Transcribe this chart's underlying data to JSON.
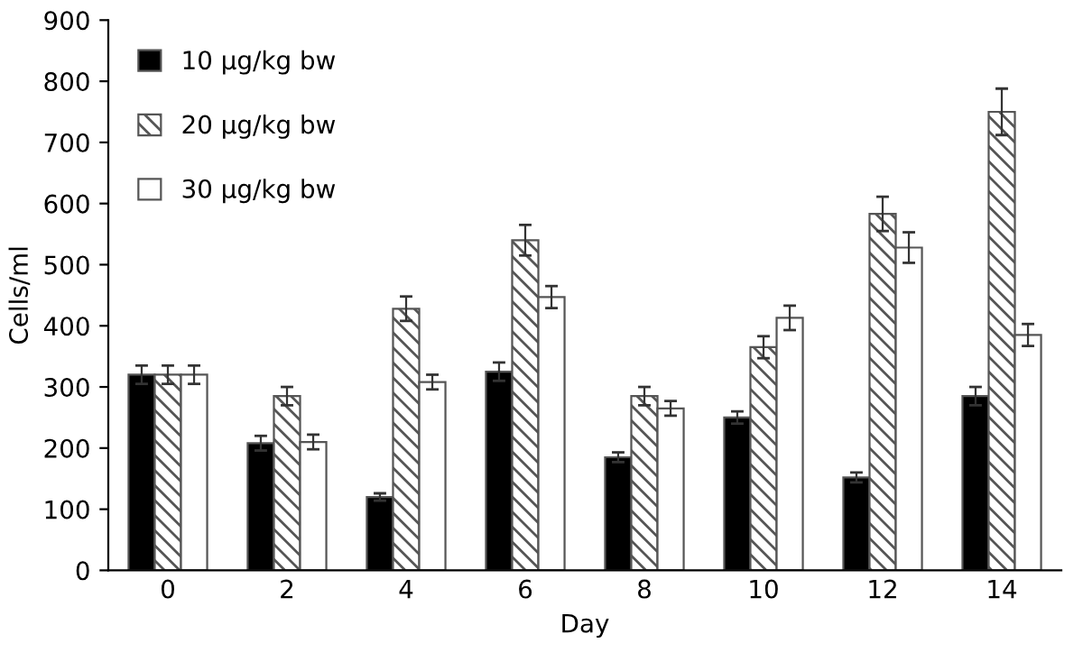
{
  "chart_data": {
    "type": "bar",
    "xlabel": "Day",
    "ylabel": "Cells/ml",
    "categories": [
      "0",
      "2",
      "4",
      "6",
      "8",
      "10",
      "12",
      "14"
    ],
    "series": [
      {
        "name": "10 µg/kg bw",
        "color": "#000000",
        "values": [
          320,
          208,
          120,
          325,
          185,
          250,
          152,
          285
        ],
        "errors": [
          15,
          12,
          6,
          15,
          8,
          10,
          8,
          15
        ]
      },
      {
        "name": "20 µg/kg bw",
        "color": "#555555",
        "values": [
          320,
          285,
          428,
          540,
          285,
          365,
          583,
          750
        ],
        "errors": [
          15,
          15,
          20,
          25,
          15,
          18,
          28,
          38
        ]
      },
      {
        "name": "30 µg/kg bw",
        "color": "#ffffff",
        "values": [
          320,
          210,
          308,
          447,
          265,
          413,
          528,
          385
        ],
        "errors": [
          15,
          12,
          12,
          18,
          12,
          20,
          25,
          18
        ]
      }
    ],
    "ylim": [
      0,
      900
    ],
    "yticks": [
      0,
      100,
      200,
      300,
      400,
      500,
      600,
      700,
      800,
      900
    ],
    "grid": false,
    "legend": "top left"
  }
}
